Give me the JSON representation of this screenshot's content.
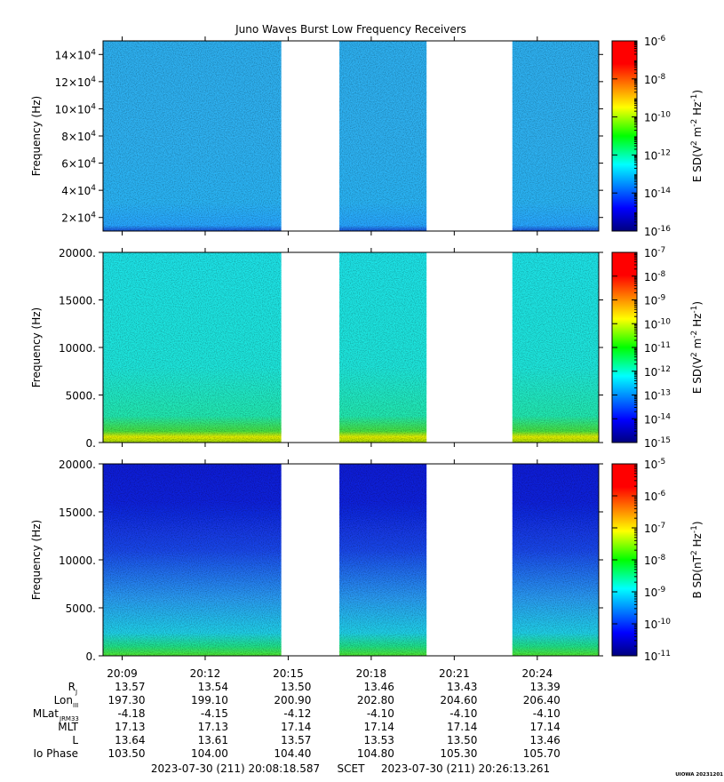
{
  "title": "Juno Waves Burst Low Frequency Receivers",
  "credit": "UIOWA 20231201",
  "chart_data": [
    {
      "type": "heatmap",
      "panel": 1,
      "ylabel": "Frequency (Hz)",
      "ytick_mantissa": [
        "2×10",
        "4×10",
        "6×10",
        "8×10",
        "10×10",
        "12×10",
        "14×10"
      ],
      "ytick_exp": "4",
      "ytick_values": [
        20000,
        40000,
        60000,
        80000,
        100000,
        120000,
        140000
      ],
      "ylim": [
        10000,
        150000
      ],
      "colorbar": {
        "label": "E SD(V",
        "label_sup1": "2",
        "label_mid": " m",
        "label_sup2": "-2",
        "label_mid2": " Hz",
        "label_sup3": "-1",
        "label_end": ")",
        "tick_base": "10",
        "tick_exps": [
          "-6",
          "-8",
          "-10",
          "-12",
          "-14",
          "-16"
        ],
        "range": [
          -16,
          -6
        ],
        "log": true
      }
    },
    {
      "type": "heatmap",
      "panel": 2,
      "ylabel": "Frequency (Hz)",
      "yticks": [
        "0.",
        "5000.",
        "10000.",
        "15000.",
        "20000."
      ],
      "ytick_values": [
        0,
        5000,
        10000,
        15000,
        20000
      ],
      "ylim": [
        0,
        20000
      ],
      "colorbar": {
        "label": "E SD(V",
        "label_sup1": "2",
        "label_mid": " m",
        "label_sup2": "-2",
        "label_mid2": " Hz",
        "label_sup3": "-1",
        "label_end": ")",
        "tick_base": "10",
        "tick_exps": [
          "-7",
          "-8",
          "-9",
          "-10",
          "-11",
          "-12",
          "-13",
          "-14",
          "-15"
        ],
        "range": [
          -15,
          -7
        ],
        "log": true
      }
    },
    {
      "type": "heatmap",
      "panel": 3,
      "ylabel": "Frequency (Hz)",
      "yticks": [
        "0.",
        "5000.",
        "10000.",
        "15000.",
        "20000."
      ],
      "ytick_values": [
        0,
        5000,
        10000,
        15000,
        20000
      ],
      "ylim": [
        0,
        20000
      ],
      "colorbar": {
        "label": "B SD(nT",
        "label_sup1": "2",
        "label_mid": " Hz",
        "label_sup2": "-1",
        "label_end": ")",
        "tick_base": "10",
        "tick_exps": [
          "-5",
          "-6",
          "-7",
          "-8",
          "-9",
          "-10",
          "-11"
        ],
        "range": [
          -11,
          -5
        ],
        "log": true
      }
    }
  ],
  "time_axis": {
    "labels": [
      "20:09",
      "20:12",
      "20:15",
      "20:18",
      "20:21",
      "20:24"
    ],
    "minutes": [
      9,
      12,
      15,
      18,
      21,
      24
    ],
    "range_minutes": [
      8.3098,
      26.221
    ],
    "data_gaps_minutes": [
      [
        14.75,
        16.85
      ],
      [
        20.0,
        23.1
      ]
    ]
  },
  "ephemeris": {
    "rows": [
      {
        "label": "R",
        "sub": "J",
        "values": [
          "13.57",
          "13.54",
          "13.50",
          "13.46",
          "13.43",
          "13.39"
        ]
      },
      {
        "label": "Lon",
        "sub": "III",
        "values": [
          "197.30",
          "199.10",
          "200.90",
          "202.80",
          "204.60",
          "206.40"
        ]
      },
      {
        "label": "MLat",
        "sub": "JRM33",
        "values": [
          "-4.18",
          "-4.15",
          "-4.12",
          "-4.10",
          "-4.10",
          "-4.10"
        ]
      },
      {
        "label": "MLT",
        "sub": "",
        "values": [
          "17.13",
          "17.13",
          "17.14",
          "17.14",
          "17.14",
          "17.14"
        ]
      },
      {
        "label": "L",
        "sub": "",
        "values": [
          "13.64",
          "13.61",
          "13.57",
          "13.53",
          "13.50",
          "13.46"
        ]
      },
      {
        "label": "Io Phase",
        "sub": "",
        "values": [
          "103.50",
          "104.00",
          "104.40",
          "104.80",
          "105.30",
          "105.70"
        ]
      }
    ]
  },
  "time_range": {
    "start": "2023-07-30 (211) 20:08:18.587",
    "middle": "SCET",
    "end": "2023-07-30 (211) 20:26:13.261"
  }
}
